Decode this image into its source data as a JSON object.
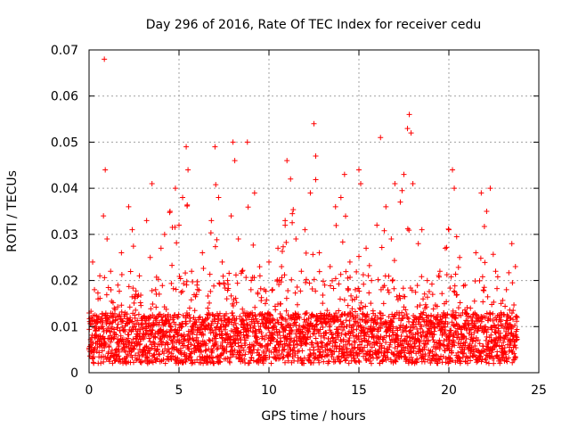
{
  "chart_data": {
    "type": "scatter",
    "title": "Day 296 of 2016, Rate Of TEC Index for receiver cedu",
    "xlabel": "GPS time / hours",
    "ylabel": "ROTI / TECUs",
    "xlim": [
      0,
      25
    ],
    "ylim": [
      0,
      0.07
    ],
    "x_ticks": [
      0,
      5,
      10,
      15,
      20,
      25
    ],
    "x_tick_labels": [
      "0",
      "5",
      "10",
      "15",
      "20",
      "25"
    ],
    "y_ticks": [
      0,
      0.01,
      0.02,
      0.03,
      0.04,
      0.05,
      0.06,
      0.07
    ],
    "y_tick_labels": [
      "0",
      "0.01",
      "0.02",
      "0.03",
      "0.04",
      "0.05",
      "0.06",
      "0.07"
    ],
    "grid": true,
    "marker": "+",
    "series": [
      {
        "name": "ROTI",
        "color": "#ff0000",
        "points": [
          [
            0.0,
            0.005
          ],
          [
            0.1,
            0.012
          ],
          [
            0.2,
            0.024
          ],
          [
            0.3,
            0.018
          ],
          [
            0.4,
            0.008
          ],
          [
            0.5,
            0.016
          ],
          [
            0.6,
            0.021
          ],
          [
            0.7,
            0.011
          ],
          [
            0.8,
            0.034
          ],
          [
            0.85,
            0.068
          ],
          [
            0.9,
            0.044
          ],
          [
            1.0,
            0.029
          ],
          [
            1.2,
            0.022
          ],
          [
            1.4,
            0.014
          ],
          [
            1.6,
            0.019
          ],
          [
            1.8,
            0.026
          ],
          [
            2.0,
            0.013
          ],
          [
            2.2,
            0.036
          ],
          [
            2.4,
            0.031
          ],
          [
            2.6,
            0.017
          ],
          [
            2.8,
            0.021
          ],
          [
            3.0,
            0.012
          ],
          [
            3.2,
            0.033
          ],
          [
            3.4,
            0.025
          ],
          [
            3.5,
            0.041
          ],
          [
            3.7,
            0.018
          ],
          [
            4.0,
            0.027
          ],
          [
            4.2,
            0.03
          ],
          [
            4.5,
            0.035
          ],
          [
            4.8,
            0.04
          ],
          [
            5.0,
            0.032
          ],
          [
            5.2,
            0.038
          ],
          [
            5.4,
            0.049
          ],
          [
            5.5,
            0.044
          ],
          [
            5.7,
            0.022
          ],
          [
            6.0,
            0.019
          ],
          [
            6.3,
            0.026
          ],
          [
            6.6,
            0.014
          ],
          [
            6.8,
            0.033
          ],
          [
            7.0,
            0.049
          ],
          [
            7.2,
            0.038
          ],
          [
            7.4,
            0.024
          ],
          [
            7.7,
            0.02
          ],
          [
            7.9,
            0.034
          ],
          [
            8.0,
            0.05
          ],
          [
            8.1,
            0.046
          ],
          [
            8.3,
            0.029
          ],
          [
            8.5,
            0.022
          ],
          [
            8.8,
            0.05
          ],
          [
            9.0,
            0.018
          ],
          [
            9.2,
            0.039
          ],
          [
            9.5,
            0.021
          ],
          [
            9.8,
            0.015
          ],
          [
            10.0,
            0.024
          ],
          [
            10.2,
            0.018
          ],
          [
            10.5,
            0.027
          ],
          [
            10.7,
            0.023
          ],
          [
            10.9,
            0.033
          ],
          [
            11.0,
            0.046
          ],
          [
            11.2,
            0.042
          ],
          [
            11.5,
            0.029
          ],
          [
            11.8,
            0.022
          ],
          [
            12.0,
            0.031
          ],
          [
            12.3,
            0.039
          ],
          [
            12.5,
            0.054
          ],
          [
            12.6,
            0.047
          ],
          [
            12.8,
            0.026
          ],
          [
            13.1,
            0.019
          ],
          [
            13.4,
            0.023
          ],
          [
            13.7,
            0.036
          ],
          [
            14.0,
            0.038
          ],
          [
            14.2,
            0.043
          ],
          [
            14.5,
            0.024
          ],
          [
            14.8,
            0.018
          ],
          [
            15.0,
            0.044
          ],
          [
            15.1,
            0.041
          ],
          [
            15.4,
            0.027
          ],
          [
            15.7,
            0.02
          ],
          [
            16.0,
            0.032
          ],
          [
            16.2,
            0.051
          ],
          [
            16.5,
            0.036
          ],
          [
            16.8,
            0.029
          ],
          [
            17.0,
            0.041
          ],
          [
            17.3,
            0.037
          ],
          [
            17.5,
            0.043
          ],
          [
            17.8,
            0.056
          ],
          [
            17.9,
            0.052
          ],
          [
            18.0,
            0.041
          ],
          [
            18.3,
            0.028
          ],
          [
            18.5,
            0.031
          ],
          [
            18.8,
            0.02
          ],
          [
            19.1,
            0.017
          ],
          [
            19.5,
            0.022
          ],
          [
            19.8,
            0.027
          ],
          [
            20.0,
            0.031
          ],
          [
            20.2,
            0.044
          ],
          [
            20.3,
            0.04
          ],
          [
            20.6,
            0.025
          ],
          [
            20.9,
            0.019
          ],
          [
            21.2,
            0.014
          ],
          [
            21.5,
            0.026
          ],
          [
            21.8,
            0.039
          ],
          [
            22.1,
            0.035
          ],
          [
            22.3,
            0.04
          ],
          [
            22.6,
            0.022
          ],
          [
            22.9,
            0.015
          ],
          [
            23.2,
            0.018
          ],
          [
            23.5,
            0.028
          ],
          [
            23.7,
            0.023
          ],
          [
            23.8,
            0.012
          ]
        ]
      }
    ]
  }
}
